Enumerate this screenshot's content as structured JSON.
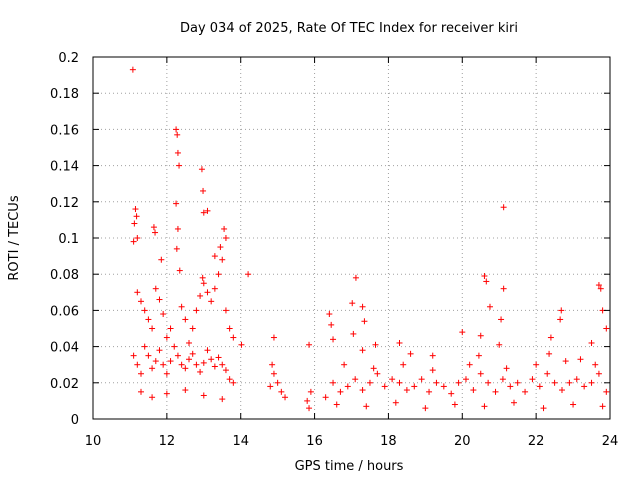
{
  "chart_data": {
    "type": "scatter",
    "title": "Day 034 of 2025, Rate Of TEC Index for receiver kiri",
    "xlabel": "GPS time / hours",
    "ylabel": "ROTI / TECUs",
    "xlim": [
      10,
      24
    ],
    "ylim": [
      0,
      0.2
    ],
    "xticks": [
      "10",
      "12",
      "14",
      "16",
      "18",
      "20",
      "22",
      "24"
    ],
    "yticks": [
      "0",
      "0.02",
      "0.04",
      "0.06",
      "0.08",
      "0.1",
      "0.12",
      "0.14",
      "0.16",
      "0.18",
      "0.2"
    ],
    "grid": true,
    "marker": "+",
    "color": "#ff0000",
    "series": [
      {
        "name": "ROTI",
        "points": [
          [
            11.08,
            0.193
          ],
          [
            12.25,
            0.16
          ],
          [
            12.28,
            0.157
          ],
          [
            12.3,
            0.147
          ],
          [
            12.33,
            0.14
          ],
          [
            12.95,
            0.138
          ],
          [
            12.98,
            0.126
          ],
          [
            12.25,
            0.119
          ],
          [
            21.12,
            0.117
          ],
          [
            11.15,
            0.116
          ],
          [
            11.18,
            0.112
          ],
          [
            11.12,
            0.108
          ],
          [
            13.0,
            0.114
          ],
          [
            13.1,
            0.115
          ],
          [
            11.65,
            0.106
          ],
          [
            11.68,
            0.103
          ],
          [
            12.3,
            0.105
          ],
          [
            11.2,
            0.1
          ],
          [
            11.1,
            0.098
          ],
          [
            12.27,
            0.094
          ],
          [
            13.55,
            0.105
          ],
          [
            13.6,
            0.1
          ],
          [
            13.45,
            0.095
          ],
          [
            11.85,
            0.088
          ],
          [
            13.3,
            0.09
          ],
          [
            14.2,
            0.08
          ],
          [
            12.35,
            0.082
          ],
          [
            12.97,
            0.078
          ],
          [
            17.12,
            0.078
          ],
          [
            20.6,
            0.079
          ],
          [
            20.65,
            0.076
          ],
          [
            21.12,
            0.072
          ],
          [
            23.7,
            0.074
          ],
          [
            23.75,
            0.072
          ],
          [
            22.68,
            0.06
          ],
          [
            23.8,
            0.06
          ],
          [
            16.4,
            0.058
          ],
          [
            17.02,
            0.064
          ],
          [
            17.3,
            0.062
          ],
          [
            20.75,
            0.062
          ],
          [
            21.05,
            0.055
          ],
          [
            16.45,
            0.052
          ],
          [
            17.35,
            0.054
          ],
          [
            22.65,
            0.055
          ],
          [
            16.5,
            0.044
          ],
          [
            17.3,
            0.038
          ],
          [
            17.05,
            0.047
          ],
          [
            18.3,
            0.042
          ],
          [
            20.0,
            0.048
          ],
          [
            20.5,
            0.046
          ],
          [
            21.0,
            0.041
          ],
          [
            22.4,
            0.045
          ],
          [
            23.5,
            0.042
          ],
          [
            23.9,
            0.05
          ],
          [
            14.9,
            0.045
          ],
          [
            14.02,
            0.041
          ],
          [
            15.85,
            0.041
          ],
          [
            17.65,
            0.041
          ],
          [
            18.6,
            0.036
          ],
          [
            19.2,
            0.035
          ],
          [
            11.2,
            0.07
          ],
          [
            11.3,
            0.065
          ],
          [
            11.4,
            0.06
          ],
          [
            11.5,
            0.055
          ],
          [
            11.6,
            0.05
          ],
          [
            11.7,
            0.072
          ],
          [
            11.8,
            0.066
          ],
          [
            11.9,
            0.058
          ],
          [
            12.0,
            0.045
          ],
          [
            12.1,
            0.05
          ],
          [
            12.4,
            0.062
          ],
          [
            12.5,
            0.055
          ],
          [
            12.6,
            0.042
          ],
          [
            12.7,
            0.05
          ],
          [
            12.8,
            0.06
          ],
          [
            12.9,
            0.068
          ],
          [
            13.0,
            0.075
          ],
          [
            13.1,
            0.07
          ],
          [
            13.2,
            0.065
          ],
          [
            13.3,
            0.072
          ],
          [
            13.4,
            0.08
          ],
          [
            13.5,
            0.088
          ],
          [
            13.6,
            0.06
          ],
          [
            13.7,
            0.05
          ],
          [
            13.8,
            0.045
          ],
          [
            11.1,
            0.035
          ],
          [
            11.2,
            0.03
          ],
          [
            11.3,
            0.025
          ],
          [
            11.4,
            0.04
          ],
          [
            11.5,
            0.035
          ],
          [
            11.6,
            0.028
          ],
          [
            11.7,
            0.032
          ],
          [
            11.8,
            0.038
          ],
          [
            11.9,
            0.03
          ],
          [
            12.0,
            0.025
          ],
          [
            12.1,
            0.032
          ],
          [
            12.2,
            0.04
          ],
          [
            12.3,
            0.035
          ],
          [
            12.4,
            0.03
          ],
          [
            12.5,
            0.028
          ],
          [
            12.6,
            0.033
          ],
          [
            12.7,
            0.036
          ],
          [
            12.8,
            0.03
          ],
          [
            12.9,
            0.026
          ],
          [
            13.0,
            0.031
          ],
          [
            13.1,
            0.038
          ],
          [
            13.2,
            0.033
          ],
          [
            13.3,
            0.029
          ],
          [
            13.4,
            0.034
          ],
          [
            13.5,
            0.03
          ],
          [
            13.6,
            0.027
          ],
          [
            13.7,
            0.022
          ],
          [
            13.8,
            0.02
          ],
          [
            11.3,
            0.015
          ],
          [
            11.6,
            0.012
          ],
          [
            12.0,
            0.014
          ],
          [
            12.5,
            0.016
          ],
          [
            13.0,
            0.013
          ],
          [
            13.5,
            0.011
          ],
          [
            14.9,
            0.025
          ],
          [
            15.0,
            0.02
          ],
          [
            15.1,
            0.015
          ],
          [
            14.8,
            0.018
          ],
          [
            15.2,
            0.012
          ],
          [
            14.85,
            0.03
          ],
          [
            15.8,
            0.01
          ],
          [
            15.85,
            0.006
          ],
          [
            15.9,
            0.015
          ],
          [
            16.3,
            0.012
          ],
          [
            16.5,
            0.02
          ],
          [
            16.7,
            0.015
          ],
          [
            16.9,
            0.018
          ],
          [
            17.1,
            0.022
          ],
          [
            17.3,
            0.016
          ],
          [
            17.5,
            0.02
          ],
          [
            17.7,
            0.025
          ],
          [
            17.9,
            0.018
          ],
          [
            18.1,
            0.022
          ],
          [
            18.3,
            0.02
          ],
          [
            18.5,
            0.016
          ],
          [
            18.7,
            0.018
          ],
          [
            18.9,
            0.022
          ],
          [
            19.1,
            0.015
          ],
          [
            19.3,
            0.02
          ],
          [
            19.5,
            0.018
          ],
          [
            19.7,
            0.014
          ],
          [
            19.9,
            0.02
          ],
          [
            20.1,
            0.022
          ],
          [
            20.3,
            0.016
          ],
          [
            20.5,
            0.025
          ],
          [
            20.7,
            0.02
          ],
          [
            20.9,
            0.015
          ],
          [
            21.1,
            0.022
          ],
          [
            21.3,
            0.018
          ],
          [
            21.5,
            0.02
          ],
          [
            21.7,
            0.015
          ],
          [
            21.9,
            0.022
          ],
          [
            22.1,
            0.018
          ],
          [
            22.3,
            0.025
          ],
          [
            22.5,
            0.02
          ],
          [
            22.7,
            0.016
          ],
          [
            22.9,
            0.02
          ],
          [
            23.1,
            0.022
          ],
          [
            23.3,
            0.018
          ],
          [
            23.5,
            0.02
          ],
          [
            23.7,
            0.025
          ],
          [
            23.9,
            0.015
          ],
          [
            16.6,
            0.008
          ],
          [
            17.4,
            0.007
          ],
          [
            18.2,
            0.009
          ],
          [
            19.0,
            0.006
          ],
          [
            19.8,
            0.008
          ],
          [
            20.6,
            0.007
          ],
          [
            21.4,
            0.009
          ],
          [
            22.2,
            0.006
          ],
          [
            23.0,
            0.008
          ],
          [
            23.8,
            0.007
          ],
          [
            16.8,
            0.03
          ],
          [
            17.6,
            0.028
          ],
          [
            18.4,
            0.03
          ],
          [
            19.2,
            0.027
          ],
          [
            20.2,
            0.03
          ],
          [
            21.2,
            0.028
          ],
          [
            22.0,
            0.03
          ],
          [
            22.8,
            0.032
          ],
          [
            23.6,
            0.03
          ],
          [
            20.45,
            0.035
          ],
          [
            22.35,
            0.036
          ],
          [
            23.2,
            0.033
          ]
        ]
      }
    ]
  }
}
